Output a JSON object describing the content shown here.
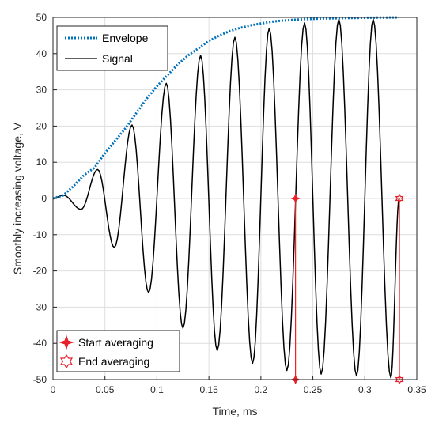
{
  "chart_data": {
    "type": "line",
    "xlabel": "Time, ms",
    "ylabel": "Smoothly increasing voltage, V",
    "xlim": [
      0,
      0.35
    ],
    "ylim": [
      -50,
      50
    ],
    "x_ticks": [
      "0",
      "0.05",
      "0.1",
      "0.15",
      "0.2",
      "0.25",
      "0.3",
      "0.35"
    ],
    "y_ticks": [
      "-50",
      "-40",
      "-30",
      "-20",
      "-10",
      "0",
      "10",
      "20",
      "30",
      "40",
      "50"
    ],
    "grid": true,
    "series": [
      {
        "name": "Envelope",
        "style": "dotted",
        "color": "#0072BD",
        "x": [
          0,
          0.01,
          0.02,
          0.03,
          0.04,
          0.05,
          0.06,
          0.07,
          0.08,
          0.09,
          0.1,
          0.11,
          0.12,
          0.13,
          0.14,
          0.15,
          0.16,
          0.17,
          0.18,
          0.19,
          0.2,
          0.21,
          0.22,
          0.23,
          0.24,
          0.25,
          0.26,
          0.27,
          0.28,
          0.29,
          0.3,
          0.31,
          0.32,
          0.33,
          0.333
        ],
        "y": [
          0,
          0.9,
          3.5,
          6.5,
          8.5,
          12.5,
          16,
          19.5,
          23.5,
          27.5,
          31,
          34,
          37,
          39.5,
          41.5,
          43.5,
          45,
          46.2,
          47.1,
          47.8,
          48.3,
          48.8,
          49.1,
          49.3,
          49.5,
          49.6,
          49.7,
          49.75,
          49.8,
          49.85,
          49.9,
          49.93,
          49.95,
          49.98,
          50
        ]
      },
      {
        "name": "Signal",
        "style": "solid",
        "color": "#000000",
        "peaks": [
          [
            0,
            0
          ],
          [
            0.01,
            0.9
          ],
          [
            0.027,
            -3
          ],
          [
            0.043,
            8
          ],
          [
            0.059,
            -13.5
          ],
          [
            0.076,
            20.3
          ],
          [
            0.092,
            -26
          ],
          [
            0.109,
            31.8
          ],
          [
            0.125,
            -35.8
          ],
          [
            0.142,
            39.5
          ],
          [
            0.158,
            -42
          ],
          [
            0.175,
            44.5
          ],
          [
            0.192,
            -45.5
          ],
          [
            0.208,
            47
          ],
          [
            0.225,
            -47.5
          ],
          [
            0.242,
            48.5
          ],
          [
            0.258,
            -48.5
          ],
          [
            0.275,
            49.5
          ],
          [
            0.292,
            -49
          ],
          [
            0.308,
            49.5
          ],
          [
            0.325,
            -49.5
          ],
          [
            0.333,
            0
          ]
        ]
      },
      {
        "name": "Start averaging",
        "style": "stem",
        "color": "#E8202A",
        "marker": "star4",
        "x": [
          0.2333,
          0.2333
        ],
        "y": [
          0,
          -50
        ]
      },
      {
        "name": "End averaging",
        "style": "stem",
        "color": "#E8202A",
        "marker": "hexagram",
        "x": [
          0.3333,
          0.3333
        ],
        "y": [
          0,
          -50
        ]
      }
    ],
    "legends": [
      {
        "placement": "top-left",
        "entries": [
          "Envelope",
          "Signal"
        ]
      },
      {
        "placement": "bottom-left",
        "entries": [
          "Start averaging",
          "End averaging"
        ]
      }
    ]
  }
}
